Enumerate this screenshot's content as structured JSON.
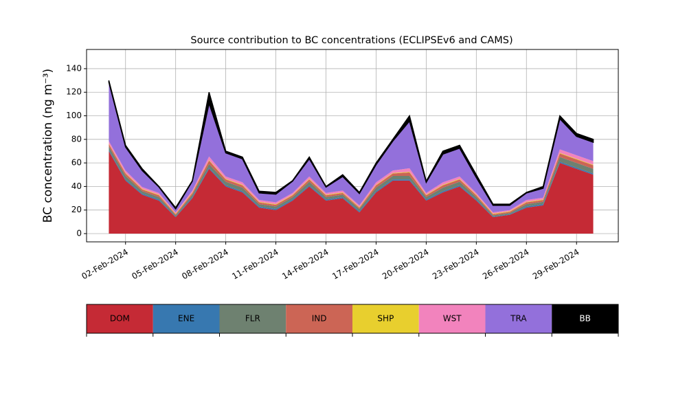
{
  "chart_data": {
    "type": "stacked_area",
    "title": "Source contribution to BC concentrations (ECLIPSEv6 and CAMS)",
    "y_label": "BC concentration (ng m⁻³)",
    "x": [
      "2024-02-01",
      "2024-02-02",
      "2024-02-03",
      "2024-02-04",
      "2024-02-05",
      "2024-02-06",
      "2024-02-07",
      "2024-02-08",
      "2024-02-09",
      "2024-02-10",
      "2024-02-11",
      "2024-02-12",
      "2024-02-13",
      "2024-02-14",
      "2024-02-15",
      "2024-02-16",
      "2024-02-17",
      "2024-02-18",
      "2024-02-19",
      "2024-02-20",
      "2024-02-21",
      "2024-02-22",
      "2024-02-23",
      "2024-02-24",
      "2024-02-25",
      "2024-02-26",
      "2024-02-27",
      "2024-02-28",
      "2024-02-29",
      "2024-03-01"
    ],
    "xlim": [
      "2024-01-30T16:00Z",
      "2024-03-02T12:00Z"
    ],
    "xticks": [
      {
        "value": "2024-02-02",
        "label": "02-Feb-2024"
      },
      {
        "value": "2024-02-05",
        "label": "05-Feb-2024"
      },
      {
        "value": "2024-02-08",
        "label": "08-Feb-2024"
      },
      {
        "value": "2024-02-11",
        "label": "11-Feb-2024"
      },
      {
        "value": "2024-02-14",
        "label": "14-Feb-2024"
      },
      {
        "value": "2024-02-17",
        "label": "17-Feb-2024"
      },
      {
        "value": "2024-02-20",
        "label": "20-Feb-2024"
      },
      {
        "value": "2024-02-23",
        "label": "23-Feb-2024"
      },
      {
        "value": "2024-02-26",
        "label": "26-Feb-2024"
      },
      {
        "value": "2024-02-29",
        "label": "29-Feb-2024"
      }
    ],
    "ylim": [
      -7,
      156.3
    ],
    "yticks": [
      0,
      20,
      40,
      60,
      80,
      100,
      120,
      140
    ],
    "grid": true,
    "series": [
      {
        "name": "DOM",
        "color": "#c52a35",
        "values": [
          70,
          45,
          33,
          28,
          14,
          30,
          55,
          40,
          35,
          22,
          20,
          28,
          40,
          28,
          30,
          18,
          35,
          45,
          45,
          28,
          35,
          40,
          28,
          14,
          16,
          22,
          24,
          60,
          55,
          50
        ]
      },
      {
        "name": "ENE",
        "color": "#3778b0",
        "values": [
          1,
          1,
          1,
          1,
          0.5,
          1,
          1,
          1,
          1,
          1,
          1,
          1,
          1,
          1,
          1,
          1,
          1,
          1,
          1,
          1,
          1,
          1,
          1,
          0.5,
          0.5,
          1,
          1,
          1,
          1,
          1
        ]
      },
      {
        "name": "FLR",
        "color": "#6e8170",
        "values": [
          3,
          3,
          2,
          2,
          1,
          2,
          3,
          3,
          3,
          2,
          2,
          2,
          3,
          2,
          2,
          2,
          3,
          3,
          3,
          2,
          3,
          3,
          2,
          1,
          1,
          2,
          2,
          4,
          4,
          4
        ]
      },
      {
        "name": "IND",
        "color": "#cc6555",
        "values": [
          2,
          2,
          1.5,
          1.5,
          1,
          1.5,
          3,
          2,
          2,
          1.5,
          1.5,
          1.5,
          2,
          1.5,
          1.5,
          1,
          2,
          2,
          3,
          1.5,
          2,
          2,
          1.5,
          1,
          1,
          1.5,
          1.5,
          3,
          3,
          3
        ]
      },
      {
        "name": "SHP",
        "color": "#e8cf2e",
        "values": [
          0.5,
          0.5,
          0.5,
          0.5,
          0.5,
          0.5,
          0.5,
          0.5,
          0.5,
          0.5,
          0.5,
          0.5,
          0.5,
          0.5,
          0.5,
          0.5,
          0.5,
          0.5,
          0.5,
          0.5,
          0.5,
          0.5,
          0.5,
          0.5,
          0.5,
          0.5,
          0.5,
          0.5,
          0.5,
          0.5
        ]
      },
      {
        "name": "WST",
        "color": "#f283bd",
        "values": [
          2,
          2,
          1.5,
          1.5,
          1,
          1.5,
          3,
          2,
          2,
          1.5,
          1.5,
          1.5,
          2,
          1.5,
          1.5,
          1.5,
          2,
          2,
          3,
          1.5,
          2,
          2,
          1.5,
          1,
          1,
          1.5,
          1.5,
          3,
          3,
          3
        ]
      },
      {
        "name": "TRA",
        "color": "#9370db",
        "values": [
          50,
          20,
          14,
          5,
          3,
          8,
          45,
          20,
          20,
          6,
          7,
          10,
          15,
          5,
          12,
          10,
          15,
          25,
          40,
          9,
          24,
          24,
          13,
          6,
          4,
          6,
          8,
          26,
          16,
          16
        ]
      },
      {
        "name": "BB",
        "color": "#000000",
        "values": [
          1.5,
          1.5,
          1.5,
          0.5,
          1,
          0.5,
          9.5,
          1.5,
          1.5,
          1.5,
          1.5,
          0.5,
          1.5,
          0.5,
          1.5,
          1,
          1.5,
          1.5,
          4.5,
          1,
          2.5,
          2.5,
          2.5,
          1,
          1,
          0.5,
          1.5,
          2.5,
          2.5,
          2.5
        ]
      }
    ]
  }
}
